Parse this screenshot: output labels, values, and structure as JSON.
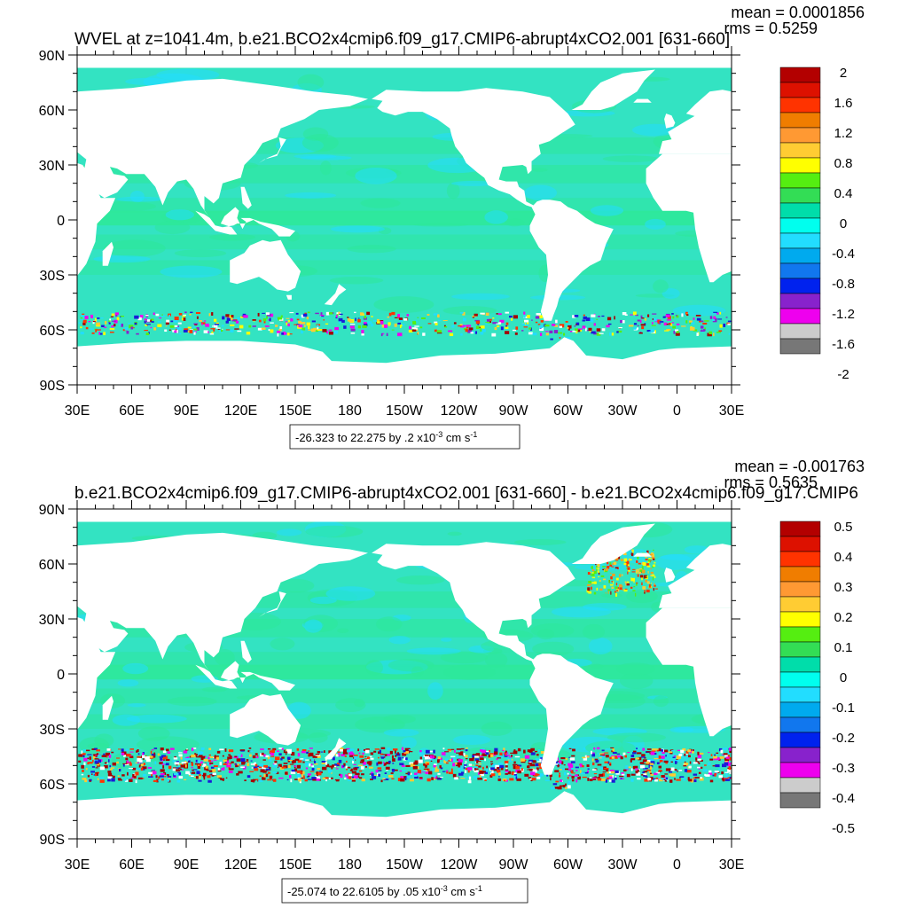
{
  "panels": [
    {
      "title": "WVEL at z=1041.4m, b.e21.BCO2x4cmip6.f09_g17.CMIP6-abrupt4xCO2.001 [631-660]",
      "mean": "mean = 0.0001856",
      "rms": "rms = 0.5259",
      "range_text": "-26.323 to 22.275 by .2 x10",
      "range_exp": "-3",
      "range_units_pre": " cm s",
      "range_units_exp": "-1",
      "legend_labels": [
        "2",
        "1.6",
        "1.2",
        "0.8",
        "0.4",
        "0",
        "-0.4",
        "-0.8",
        "-1.2",
        "-1.6",
        "-2"
      ]
    },
    {
      "title": "b.e21.BCO2x4cmip6.f09_g17.CMIP6-abrupt4xCO2.001 [631-660] - b.e21.BCO2x4cmip6.f09_g17.CMIP6",
      "mean": "mean = -0.001763",
      "rms": "rms = 0.5635",
      "range_text": "-25.074 to 22.6105 by .05 x10",
      "range_exp": "-3",
      "range_units_pre": " cm s",
      "range_units_exp": "-1",
      "legend_labels": [
        "0.5",
        "0.4",
        "0.3",
        "0.2",
        "0.1",
        "0",
        "-0.1",
        "-0.2",
        "-0.3",
        "-0.4",
        "-0.5"
      ]
    }
  ],
  "lat_labels": [
    "90N",
    "60N",
    "30N",
    "0",
    "30S",
    "60S",
    "90S"
  ],
  "lon_labels": [
    "30E",
    "60E",
    "90E",
    "120E",
    "150E",
    "180",
    "150W",
    "120W",
    "90W",
    "60W",
    "30W",
    "0",
    "30E"
  ],
  "colors": {
    "legend_fills": [
      "#b30000",
      "#dd1100",
      "#ff3300",
      "#f07d00",
      "#ff9933",
      "#ffcc33",
      "#ffff00",
      "#55ee11",
      "#33dd55",
      "#00ddaa",
      "#00ffee",
      "#22ddff",
      "#00aaee",
      "#1177ee",
      "#0022ee",
      "#8822cc",
      "#ee00ee",
      "#cccccc",
      "#777777"
    ],
    "ocean_base": "#33e3c2",
    "ocean_light": "#2ee89a",
    "southern_red": "#a50000",
    "southern_blue": "#1a1ad8",
    "northatl_yellow": "#f0a020",
    "land": "#ffffff"
  }
}
